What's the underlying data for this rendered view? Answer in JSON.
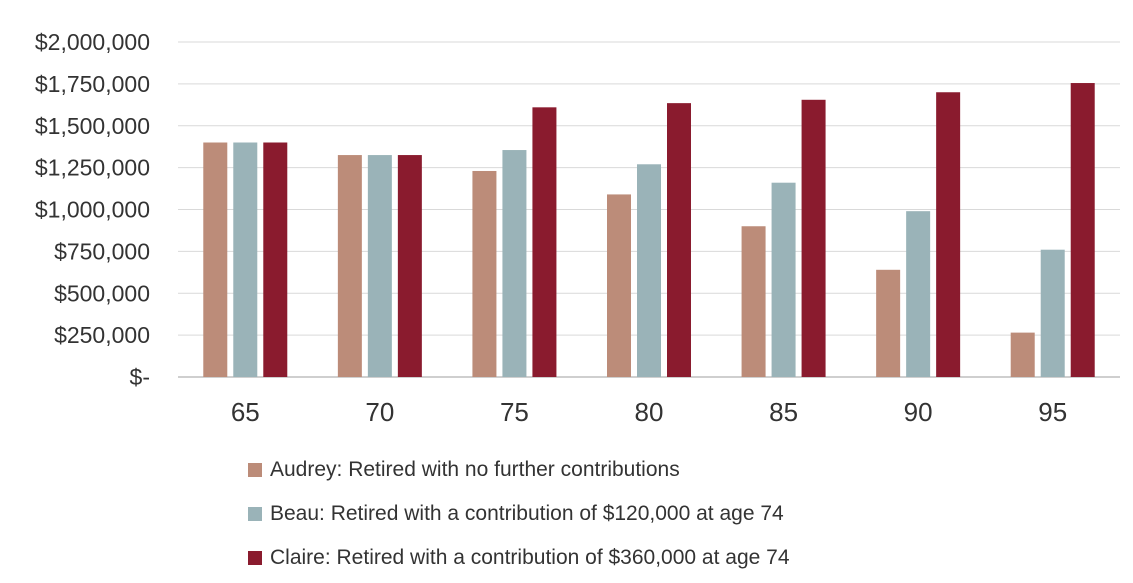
{
  "chart_data": {
    "type": "bar",
    "categories": [
      "65",
      "70",
      "75",
      "80",
      "85",
      "90",
      "95"
    ],
    "series": [
      {
        "name": "Audrey: Retired with no further contributions",
        "color": "#bc8c79",
        "values": [
          1400000,
          1325000,
          1230000,
          1090000,
          900000,
          640000,
          265000
        ]
      },
      {
        "name": "Beau: Retired with a contribution of $120,000 at age 74",
        "color": "#9ab3b8",
        "values": [
          1400000,
          1325000,
          1355000,
          1270000,
          1160000,
          990000,
          760000
        ]
      },
      {
        "name": "Claire: Retired with a contribution of $360,000 at age 74",
        "color": "#8a1b2e",
        "values": [
          1400000,
          1325000,
          1610000,
          1635000,
          1655000,
          1700000,
          1755000
        ]
      }
    ],
    "ylim": [
      0,
      2000000
    ],
    "yticks": [
      {
        "value": 0,
        "label": "$-"
      },
      {
        "value": 250000,
        "label": "$250,000"
      },
      {
        "value": 500000,
        "label": "$500,000"
      },
      {
        "value": 750000,
        "label": "$750,000"
      },
      {
        "value": 1000000,
        "label": "$1,000,000"
      },
      {
        "value": 1250000,
        "label": "$1,250,000"
      },
      {
        "value": 1500000,
        "label": "$1,500,000"
      },
      {
        "value": 1750000,
        "label": "$1,750,000"
      },
      {
        "value": 2000000,
        "label": "$2,000,000"
      }
    ],
    "grid": true,
    "legend_position": "bottom",
    "title": "",
    "xlabel": "",
    "ylabel": ""
  }
}
